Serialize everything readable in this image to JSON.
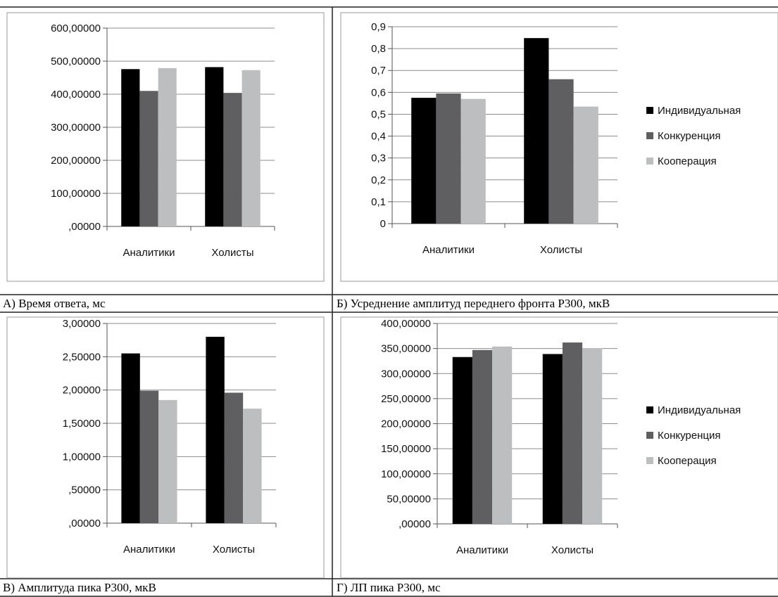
{
  "series_colors": [
    "#000000",
    "#5f5f61",
    "#bcbec0"
  ],
  "chart_data": [
    {
      "type": "bar",
      "caption": "А) Время ответа, мс",
      "categories": [
        "Аналитики",
        "Холисты"
      ],
      "yticks": [
        ",00000",
        "100,00000",
        "200,00000",
        "300,00000",
        "400,00000",
        "500,00000",
        "600,00000"
      ],
      "ylim": [
        0,
        600
      ],
      "grid": true,
      "legend": [],
      "series": [
        {
          "values": [
            476,
            482
          ]
        },
        {
          "values": [
            410,
            404
          ]
        },
        {
          "values": [
            479,
            473
          ]
        }
      ]
    },
    {
      "type": "bar",
      "caption": "Б) Усреднение амплитуд переднего фронта Р300, мкВ",
      "categories": [
        "Аналитики",
        "Холисты"
      ],
      "yticks": [
        "0",
        "0,1",
        "0,2",
        "0,3",
        "0,4",
        "0,5",
        "0,6",
        "0,7",
        "0,8",
        "0,9"
      ],
      "ylim": [
        0,
        0.9
      ],
      "grid": true,
      "legend": [
        "Индивидуальная",
        "Конкуренция",
        "Кооперация"
      ],
      "series": [
        {
          "name": "Индивидуальная",
          "values": [
            0.575,
            0.848
          ]
        },
        {
          "name": "Конкуренция",
          "values": [
            0.595,
            0.66
          ]
        },
        {
          "name": "Кооперация",
          "values": [
            0.57,
            0.535
          ]
        }
      ]
    },
    {
      "type": "bar",
      "caption": "В) Амплитуда пика Р300, мкВ",
      "categories": [
        "Аналитики",
        "Холисты"
      ],
      "yticks": [
        ",00000",
        ",50000",
        "1,00000",
        "1,50000",
        "2,00000",
        "2,50000",
        "3,00000"
      ],
      "ylim": [
        0,
        3
      ],
      "grid": true,
      "legend": [],
      "series": [
        {
          "values": [
            2.55,
            2.8
          ]
        },
        {
          "values": [
            1.99,
            1.96
          ]
        },
        {
          "values": [
            1.85,
            1.72
          ]
        }
      ]
    },
    {
      "type": "bar",
      "caption": "Г) ЛП пика Р300, мс",
      "categories": [
        "Аналитики",
        "Холисты"
      ],
      "yticks": [
        ",00000",
        "50,00000",
        "100,00000",
        "150,00000",
        "200,00000",
        "250,00000",
        "300,00000",
        "350,00000",
        "400,00000"
      ],
      "ylim": [
        0,
        400
      ],
      "grid": true,
      "legend": [
        "Индивидуальная",
        "Конкуренция",
        "Кооперация"
      ],
      "series": [
        {
          "name": "Индивидуальная",
          "values": [
            333,
            339
          ]
        },
        {
          "name": "Конкуренция",
          "values": [
            347,
            362
          ]
        },
        {
          "name": "Кооперация",
          "values": [
            354,
            351
          ]
        }
      ]
    }
  ]
}
